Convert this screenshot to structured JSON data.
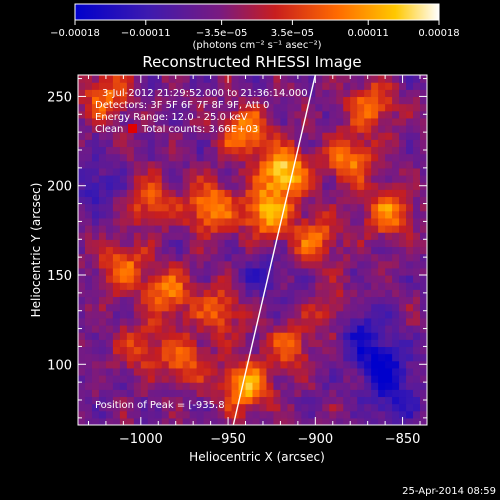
{
  "chart_data": {
    "type": "heatmap",
    "title": "Reconstructed RHESSI Image",
    "xlabel": "Heliocentric X (arcsec)",
    "ylabel": "Heliocentric Y (arcsec)",
    "xlim": [
      -1036,
      -836
    ],
    "ylim": [
      66,
      262
    ],
    "x_ticks": [
      -1000,
      -950,
      -900,
      -850
    ],
    "x_tick_labels": [
      "−1000",
      "−950",
      "−900",
      "−850"
    ],
    "y_ticks": [
      100,
      150,
      200,
      250
    ],
    "y_tick_labels": [
      "100",
      "150",
      "200",
      "250"
    ],
    "colorbar": {
      "range": [
        -0.00018,
        0.00018
      ],
      "ticks": [
        -0.00018,
        -0.00011,
        -3.5e-05,
        3.5e-05,
        0.00011,
        0.00018
      ],
      "tick_labels": [
        "−0.00018",
        "−0.00011",
        "−3.5e−05",
        "3.5e−05",
        "0.00011",
        "0.00018"
      ],
      "unit_label": "(photons cm⁻² s⁻¹ asec⁻²)",
      "colors": [
        "#0000cc",
        "#3d1ab0",
        "#7a1a80",
        "#c81e1e",
        "#ff6a00",
        "#ffc800",
        "#ffffff"
      ]
    },
    "annotations": [
      "3-Jul-2012 21:29:52.000 to 21:36:14.000",
      "Detectors: 3F 5F 6F 7F 8F 9F, Att 0",
      "Energy Range: 12.0 - 25.0 keV",
      "Clean",
      "Total counts: 3.66E+03"
    ],
    "peak_label": "Position of Peak = [-935.8",
    "limb_line": [
      [
        -947,
        66
      ],
      [
        -900,
        262
      ]
    ],
    "bright_regions": [
      {
        "x": -918,
        "y": 208,
        "level": 1.0
      },
      {
        "x": -928,
        "y": 185,
        "level": 0.85
      },
      {
        "x": -960,
        "y": 188,
        "level": 0.8
      },
      {
        "x": -940,
        "y": 230,
        "level": 0.75
      },
      {
        "x": -995,
        "y": 192,
        "level": 0.55
      },
      {
        "x": -1020,
        "y": 250,
        "level": 0.6
      },
      {
        "x": -985,
        "y": 140,
        "level": 0.65
      },
      {
        "x": -1010,
        "y": 155,
        "level": 0.6
      },
      {
        "x": -955,
        "y": 130,
        "level": 0.55
      },
      {
        "x": -880,
        "y": 215,
        "level": 0.7
      },
      {
        "x": -858,
        "y": 185,
        "level": 0.65
      },
      {
        "x": -868,
        "y": 245,
        "level": 0.6
      },
      {
        "x": -900,
        "y": 170,
        "level": 0.6
      },
      {
        "x": -940,
        "y": 88,
        "level": 0.9
      },
      {
        "x": -975,
        "y": 102,
        "level": 0.55
      },
      {
        "x": -1000,
        "y": 110,
        "level": 0.45
      },
      {
        "x": -915,
        "y": 110,
        "level": 0.5
      },
      {
        "x": -890,
        "y": 130,
        "level": 0.4
      }
    ],
    "dark_regions": [
      {
        "x": -862,
        "y": 100,
        "level": -0.7
      },
      {
        "x": -875,
        "y": 120,
        "level": -0.5
      },
      {
        "x": -855,
        "y": 80,
        "level": -0.45
      },
      {
        "x": -1025,
        "y": 200,
        "level": -0.35
      },
      {
        "x": -930,
        "y": 150,
        "level": -0.3
      }
    ]
  },
  "footer": {
    "date": "25-Apr-2014 08:59"
  }
}
